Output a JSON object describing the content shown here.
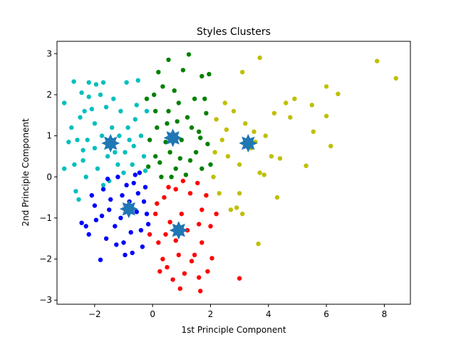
{
  "chart_data": {
    "type": "scatter",
    "title": "Styles Clusters",
    "xlabel": "1st Principle Component",
    "ylabel": "2nd Principle Component",
    "xlim": [
      -3.3,
      8.9
    ],
    "ylim": [
      -3.1,
      3.3
    ],
    "x_ticks": [
      -2,
      0,
      2,
      4,
      6,
      8
    ],
    "y_ticks": [
      -3,
      -2,
      -1,
      0,
      1,
      2,
      3
    ],
    "grid": false,
    "legend": null,
    "series": [
      {
        "color": "#00bfbf",
        "points": [
          [
            -3.05,
            1.8
          ],
          [
            -3.05,
            0.2
          ],
          [
            -2.72,
            2.32
          ],
          [
            -2.45,
            2.05
          ],
          [
            -2.2,
            2.3
          ],
          [
            -2.35,
            1.6
          ],
          [
            -2.8,
            1.2
          ],
          [
            -2.6,
            0.9
          ],
          [
            -2.4,
            0.4
          ],
          [
            -2.0,
            1.3
          ],
          [
            -1.8,
            2.0
          ],
          [
            -1.7,
            2.3
          ],
          [
            -1.6,
            1.7
          ],
          [
            -1.4,
            1.2
          ],
          [
            -1.1,
            1.6
          ],
          [
            -1.2,
            0.3
          ],
          [
            -1.5,
            -0.1
          ],
          [
            -0.8,
            0.9
          ],
          [
            -0.6,
            1.4
          ],
          [
            -0.3,
            0.5
          ],
          [
            -0.9,
            2.3
          ],
          [
            -0.5,
            2.35
          ],
          [
            -2.9,
            0.85
          ],
          [
            -2.65,
            -0.35
          ],
          [
            -2.55,
            -0.55
          ],
          [
            -2.3,
            0.0
          ],
          [
            -2.0,
            0.7
          ],
          [
            -1.9,
            0.2
          ],
          [
            -1.3,
            0.6
          ],
          [
            -1.0,
            0.1
          ],
          [
            -0.7,
            0.3
          ],
          [
            -0.4,
            1.0
          ],
          [
            -0.2,
            1.6
          ],
          [
            -0.55,
            1.75
          ],
          [
            -1.75,
            1.0
          ],
          [
            -2.1,
            1.65
          ],
          [
            -2.25,
            0.9
          ],
          [
            -2.5,
            1.45
          ],
          [
            -1.55,
            0.5
          ],
          [
            -1.15,
            1.0
          ],
          [
            -0.85,
            1.2
          ],
          [
            -0.25,
            0.15
          ],
          [
            -2.7,
            0.3
          ],
          [
            -2.2,
            1.95
          ],
          [
            -1.95,
            2.25
          ],
          [
            -1.35,
            1.9
          ],
          [
            -0.95,
            0.6
          ],
          [
            -0.65,
            0.75
          ],
          [
            -1.7,
            -0.2
          ],
          [
            -2.4,
            0.65
          ]
        ]
      },
      {
        "color": "#008000",
        "points": [
          [
            1.25,
            2.98
          ],
          [
            0.55,
            2.85
          ],
          [
            1.95,
            2.5
          ],
          [
            1.7,
            2.45
          ],
          [
            0.2,
            2.55
          ],
          [
            -0.2,
            1.9
          ],
          [
            0.1,
            1.6
          ],
          [
            0.5,
            1.3
          ],
          [
            0.9,
            1.8
          ],
          [
            1.2,
            1.45
          ],
          [
            1.6,
            1.1
          ],
          [
            1.9,
            0.8
          ],
          [
            1.3,
            0.4
          ],
          [
            0.8,
            0.2
          ],
          [
            0.3,
            0.0
          ],
          [
            0.1,
            0.5
          ],
          [
            -0.1,
            0.9
          ],
          [
            0.6,
            0.6
          ],
          [
            1.0,
            0.9
          ],
          [
            1.5,
            0.6
          ],
          [
            1.7,
            0.2
          ],
          [
            2.0,
            0.3
          ],
          [
            0.35,
            2.2
          ],
          [
            0.75,
            2.1
          ],
          [
            1.05,
            2.6
          ],
          [
            1.45,
            1.9
          ],
          [
            1.85,
            1.55
          ],
          [
            0.15,
            1.2
          ],
          [
            0.45,
            0.85
          ],
          [
            0.95,
            0.45
          ],
          [
            1.15,
            0.05
          ],
          [
            0.55,
            1.6
          ],
          [
            -0.15,
            0.25
          ],
          [
            1.65,
            0.95
          ],
          [
            0.25,
            0.35
          ],
          [
            0.85,
            1.35
          ],
          [
            1.35,
            1.2
          ],
          [
            0.65,
            0.0
          ],
          [
            1.8,
            1.9
          ],
          [
            0.05,
            2.0
          ]
        ]
      },
      {
        "color": "#bfbf00",
        "points": [
          [
            7.75,
            2.82
          ],
          [
            8.4,
            2.4
          ],
          [
            3.7,
            2.9
          ],
          [
            3.1,
            2.55
          ],
          [
            6.0,
            2.2
          ],
          [
            6.4,
            2.02
          ],
          [
            5.5,
            1.75
          ],
          [
            4.9,
            1.9
          ],
          [
            4.6,
            1.8
          ],
          [
            6.0,
            1.48
          ],
          [
            4.75,
            1.45
          ],
          [
            5.55,
            1.1
          ],
          [
            6.15,
            0.75
          ],
          [
            2.5,
            1.8
          ],
          [
            2.8,
            1.6
          ],
          [
            3.2,
            1.3
          ],
          [
            3.5,
            1.1
          ],
          [
            3.9,
            1.0
          ],
          [
            2.2,
            1.4
          ],
          [
            2.4,
            0.9
          ],
          [
            2.6,
            0.5
          ],
          [
            3.0,
            0.3
          ],
          [
            3.4,
            0.7
          ],
          [
            3.7,
            0.1
          ],
          [
            4.1,
            0.5
          ],
          [
            4.4,
            0.45
          ],
          [
            5.3,
            0.27
          ],
          [
            2.1,
            0.0
          ],
          [
            2.3,
            -0.4
          ],
          [
            2.7,
            -0.8
          ],
          [
            3.1,
            -0.9
          ],
          [
            3.0,
            -0.4
          ],
          [
            4.3,
            -0.5
          ],
          [
            3.65,
            -1.63
          ],
          [
            2.9,
            -0.75
          ],
          [
            3.55,
            0.85
          ],
          [
            4.2,
            1.55
          ],
          [
            2.15,
            0.6
          ],
          [
            3.85,
            0.05
          ],
          [
            2.55,
            1.15
          ]
        ]
      },
      {
        "color": "#0000ff",
        "points": [
          [
            -1.8,
            -2.02
          ],
          [
            -2.45,
            -1.12
          ],
          [
            -2.2,
            -1.4
          ],
          [
            -2.0,
            -0.7
          ],
          [
            -1.7,
            -0.3
          ],
          [
            -1.5,
            -0.8
          ],
          [
            -1.3,
            -1.2
          ],
          [
            -1.0,
            -1.6
          ],
          [
            -0.7,
            -1.85
          ],
          [
            -0.4,
            -1.3
          ],
          [
            -0.2,
            -0.9
          ],
          [
            -0.5,
            -0.4
          ],
          [
            -0.9,
            -0.2
          ],
          [
            -1.2,
            0.0
          ],
          [
            -0.6,
            0.05
          ],
          [
            -0.3,
            -0.6
          ],
          [
            -1.6,
            -1.5
          ],
          [
            -1.1,
            -1.0
          ],
          [
            -0.8,
            -0.6
          ],
          [
            -2.3,
            -1.2
          ],
          [
            -1.95,
            -1.05
          ],
          [
            -1.45,
            -0.55
          ],
          [
            -1.05,
            -0.45
          ],
          [
            -0.55,
            -0.85
          ],
          [
            -0.15,
            -1.15
          ],
          [
            -0.35,
            -1.7
          ],
          [
            -1.25,
            -1.65
          ],
          [
            -1.75,
            -0.95
          ],
          [
            -0.75,
            -1.35
          ],
          [
            -0.45,
            0.1
          ],
          [
            -1.55,
            -0.05
          ],
          [
            -2.1,
            -0.45
          ],
          [
            -0.25,
            -0.25
          ],
          [
            -0.95,
            -1.9
          ],
          [
            -0.65,
            -0.15
          ]
        ]
      },
      {
        "color": "#ff0000",
        "points": [
          [
            1.65,
            -2.78
          ],
          [
            0.95,
            -2.72
          ],
          [
            3.0,
            -2.47
          ],
          [
            1.6,
            -2.45
          ],
          [
            2.05,
            -1.98
          ],
          [
            1.7,
            -1.6
          ],
          [
            1.2,
            -1.3
          ],
          [
            0.9,
            -1.9
          ],
          [
            0.5,
            -2.2
          ],
          [
            0.2,
            -1.6
          ],
          [
            0.1,
            -0.9
          ],
          [
            0.4,
            -0.5
          ],
          [
            0.8,
            -0.3
          ],
          [
            1.3,
            -0.4
          ],
          [
            1.7,
            -0.8
          ],
          [
            2.0,
            -1.2
          ],
          [
            1.45,
            -1.9
          ],
          [
            0.6,
            -1.1
          ],
          [
            1.0,
            -0.9
          ],
          [
            1.1,
            -2.35
          ],
          [
            0.35,
            -2.0
          ],
          [
            -0.1,
            -1.4
          ],
          [
            0.15,
            -0.65
          ],
          [
            0.55,
            -0.25
          ],
          [
            1.05,
            -0.1
          ],
          [
            1.55,
            -0.15
          ],
          [
            1.85,
            -0.45
          ],
          [
            2.2,
            -0.9
          ],
          [
            1.9,
            -2.3
          ],
          [
            0.7,
            -2.5
          ],
          [
            0.25,
            -2.3
          ],
          [
            1.35,
            -2.05
          ],
          [
            0.8,
            -1.55
          ],
          [
            1.6,
            -1.15
          ],
          [
            0.45,
            -1.4
          ]
        ]
      }
    ],
    "centroids": {
      "color": "#1f77b4",
      "points": [
        [
          -1.45,
          0.82
        ],
        [
          0.7,
          0.95
        ],
        [
          3.3,
          0.82
        ],
        [
          -0.82,
          -0.78
        ],
        [
          0.9,
          -1.3
        ]
      ]
    }
  }
}
